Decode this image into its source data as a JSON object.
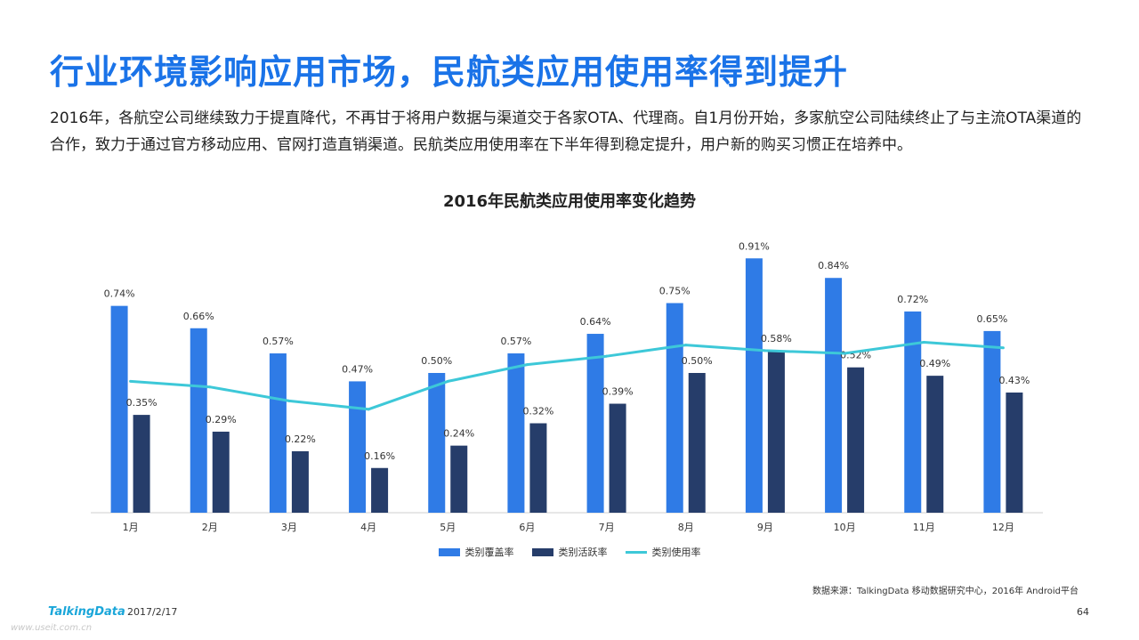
{
  "slide": {
    "title": "行业环境影响应用市场，民航类应用使用率得到提升",
    "description": "2016年，各航空公司继续致力于提直降代，不再甘于将用户数据与渠道交于各家OTA、代理商。自1月份开始，多家航空公司陆续终止了与主流OTA渠道的合作，致力于通过官方移动应用、官网打造直销渠道。民航类应用使用率在下半年得到稳定提升，用户新的购买习惯正在培养中。",
    "source": "数据来源：TalkingData 移动数据研究中心，2016年 Android平台",
    "logo": "TalkingData",
    "date": "2017/2/17",
    "page_number": "64",
    "watermark": "www.useit.com.cn"
  },
  "colors": {
    "coverage": "#2f7be6",
    "active": "#263d6a",
    "usage": "#3dc8d8",
    "title": "#1a73e8"
  },
  "chart_data": {
    "type": "bar",
    "title": "2016年民航类应用使用率变化趋势",
    "categories": [
      "1月",
      "2月",
      "3月",
      "4月",
      "5月",
      "6月",
      "7月",
      "8月",
      "9月",
      "10月",
      "11月",
      "12月"
    ],
    "series": [
      {
        "name": "类别覆盖率",
        "kind": "bar",
        "values": [
          0.74,
          0.66,
          0.57,
          0.47,
          0.5,
          0.57,
          0.64,
          0.75,
          0.91,
          0.84,
          0.72,
          0.65
        ],
        "labels": [
          "0.74%",
          "0.66%",
          "0.57%",
          "0.47%",
          "0.50%",
          "0.57%",
          "0.64%",
          "0.75%",
          "0.91%",
          "0.84%",
          "0.72%",
          "0.65%"
        ]
      },
      {
        "name": "类别活跃率",
        "kind": "bar",
        "values": [
          0.35,
          0.29,
          0.22,
          0.16,
          0.24,
          0.32,
          0.39,
          0.5,
          0.58,
          0.52,
          0.49,
          0.43
        ],
        "labels": [
          "0.35%",
          "0.29%",
          "0.22%",
          "0.16%",
          "0.24%",
          "0.32%",
          "0.39%",
          "0.50%",
          "0.58%",
          "0.52%",
          "0.49%",
          "0.43%"
        ]
      },
      {
        "name": "类别使用率",
        "kind": "line",
        "values": [
          47,
          45,
          40,
          37,
          47,
          53,
          56,
          60,
          58,
          57,
          61,
          59
        ]
      }
    ],
    "ylim": [
      0,
      1.0
    ],
    "grid": false,
    "legend_position": "bottom"
  }
}
